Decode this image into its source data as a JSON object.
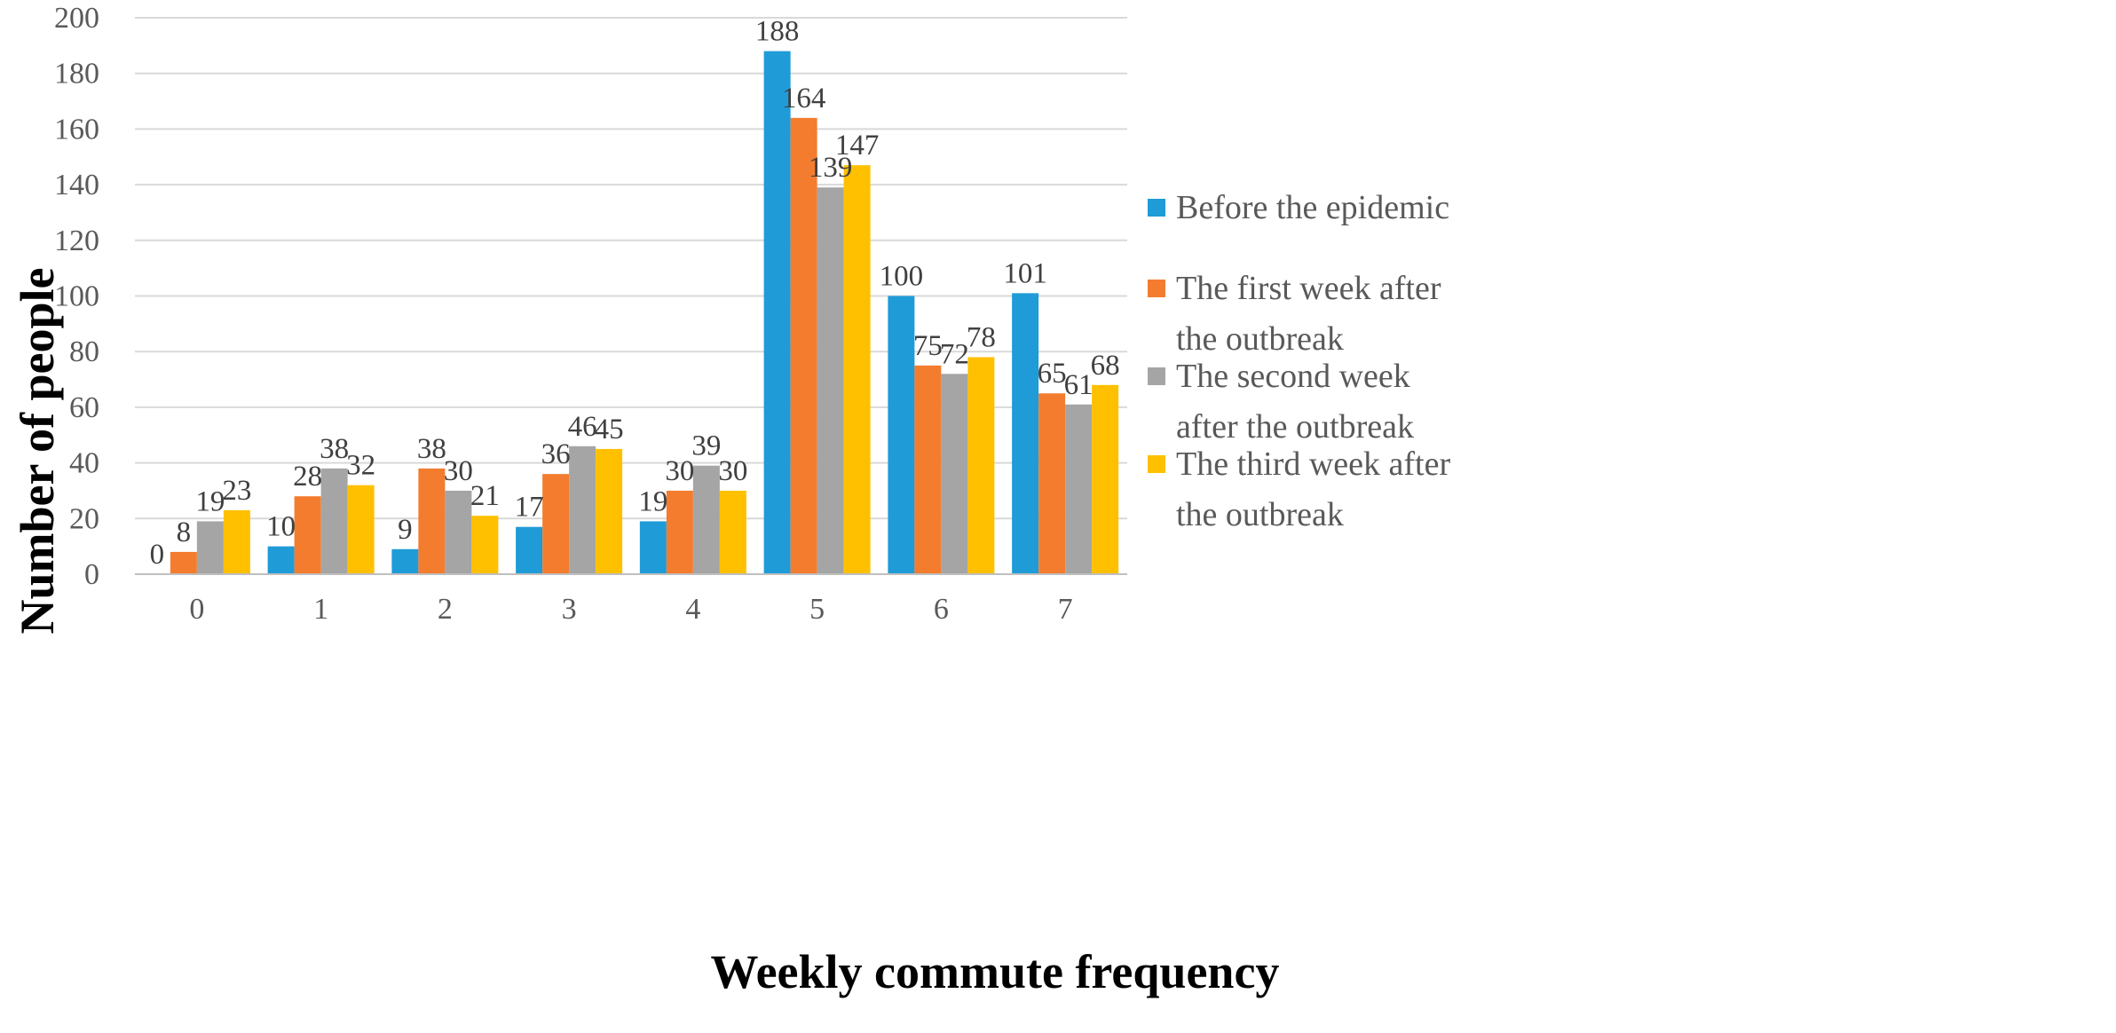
{
  "chart_data": {
    "type": "bar",
    "title": "",
    "xlabel": "Weekly commute frequency",
    "ylabel": "Number of people",
    "ylim": [
      0,
      200
    ],
    "yticks": [
      0,
      20,
      40,
      60,
      80,
      100,
      120,
      140,
      160,
      180,
      200
    ],
    "categories": [
      "0",
      "1",
      "2",
      "3",
      "4",
      "5",
      "6",
      "7"
    ],
    "grid": "horizontal",
    "legend_position": "right",
    "series": [
      {
        "name": "Before the epidemic",
        "legend_lines": [
          "Before the epidemic"
        ],
        "color": "#1f9bd7",
        "values": [
          0,
          10,
          9,
          17,
          19,
          188,
          100,
          101
        ]
      },
      {
        "name": "The first week after the outbreak",
        "legend_lines": [
          "The first week after",
          "the outbreak"
        ],
        "color": "#f47c2f",
        "values": [
          8,
          28,
          38,
          36,
          30,
          164,
          75,
          65
        ]
      },
      {
        "name": "The second week after the outbreak",
        "legend_lines": [
          "The second week",
          "after the outbreak"
        ],
        "color": "#a5a5a5",
        "values": [
          19,
          38,
          30,
          46,
          39,
          139,
          72,
          61
        ]
      },
      {
        "name": "The third week after the outbreak",
        "legend_lines": [
          "The third week after",
          "the outbreak"
        ],
        "color": "#ffc000",
        "values": [
          23,
          32,
          21,
          45,
          30,
          147,
          78,
          68
        ]
      }
    ]
  }
}
